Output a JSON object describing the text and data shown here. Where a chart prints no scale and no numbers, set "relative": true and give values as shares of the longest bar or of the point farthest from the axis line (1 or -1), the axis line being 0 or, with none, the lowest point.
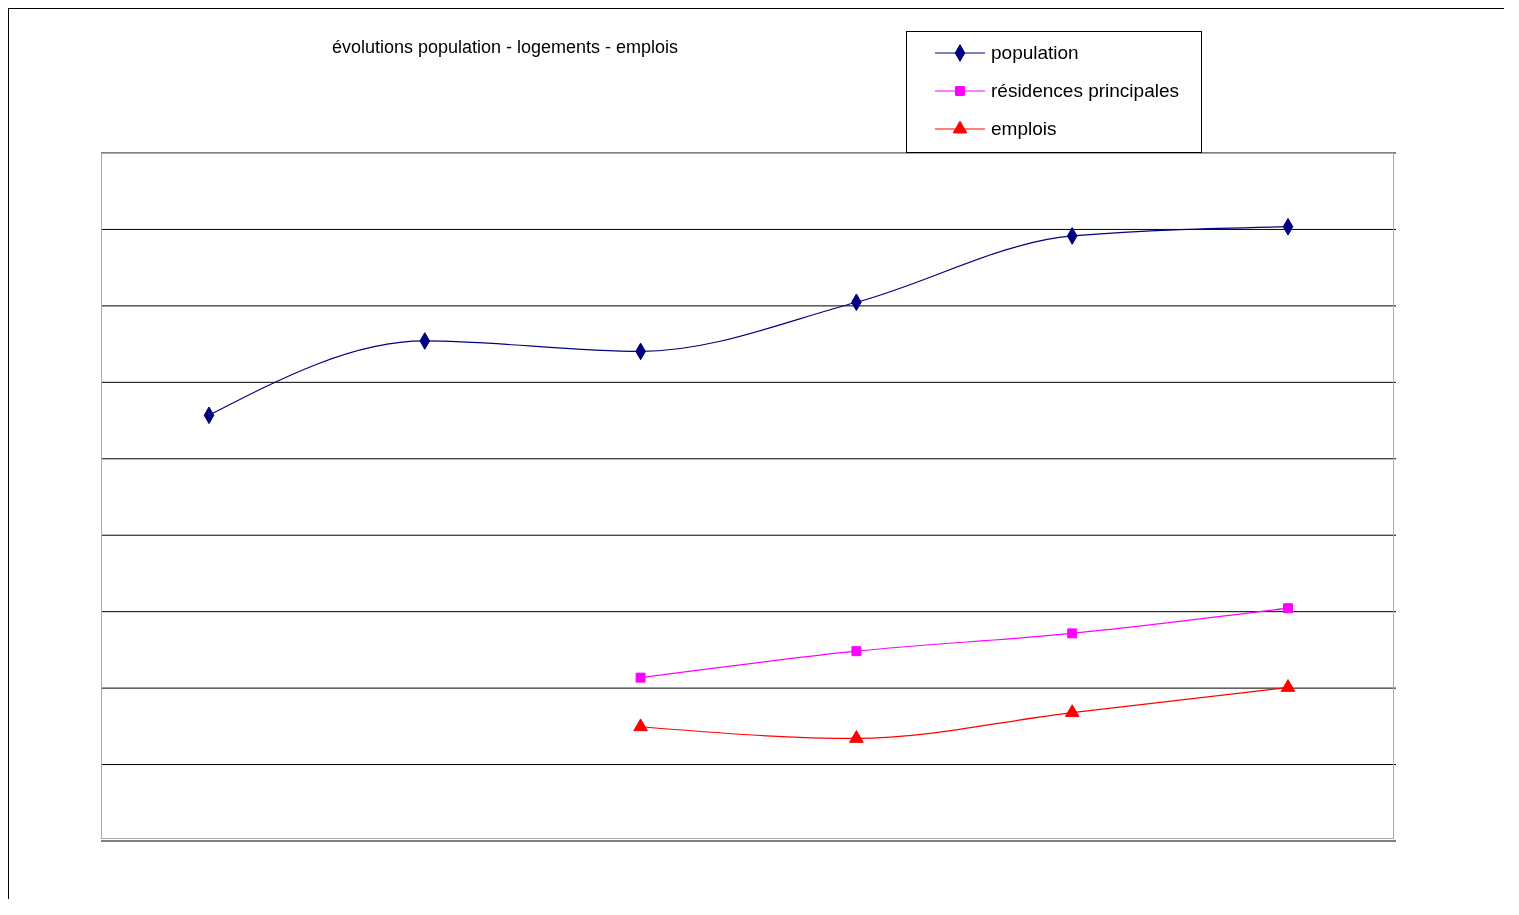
{
  "chart_data": {
    "type": "line",
    "title": "évolutions population - logements - emplois",
    "relative": true,
    "categories": [
      null,
      null,
      null,
      null,
      null,
      null
    ],
    "series": [
      {
        "name": "population",
        "color": "#000080",
        "marker": "diamond",
        "values": [
          0.693,
          0.814,
          0.797,
          0.877,
          0.985,
          1
        ]
      },
      {
        "name": "résidences principales",
        "color": "#ff00ff",
        "marker": "square",
        "values": [
          null,
          null,
          0.266,
          0.309,
          0.338,
          0.379
        ]
      },
      {
        "name": "emplois",
        "color": "#ff0000",
        "marker": "triangle",
        "values": [
          null,
          null,
          0.186,
          0.167,
          0.209,
          0.25
        ]
      }
    ],
    "grid": "y",
    "legend": "top right",
    "line_style": "solid"
  }
}
